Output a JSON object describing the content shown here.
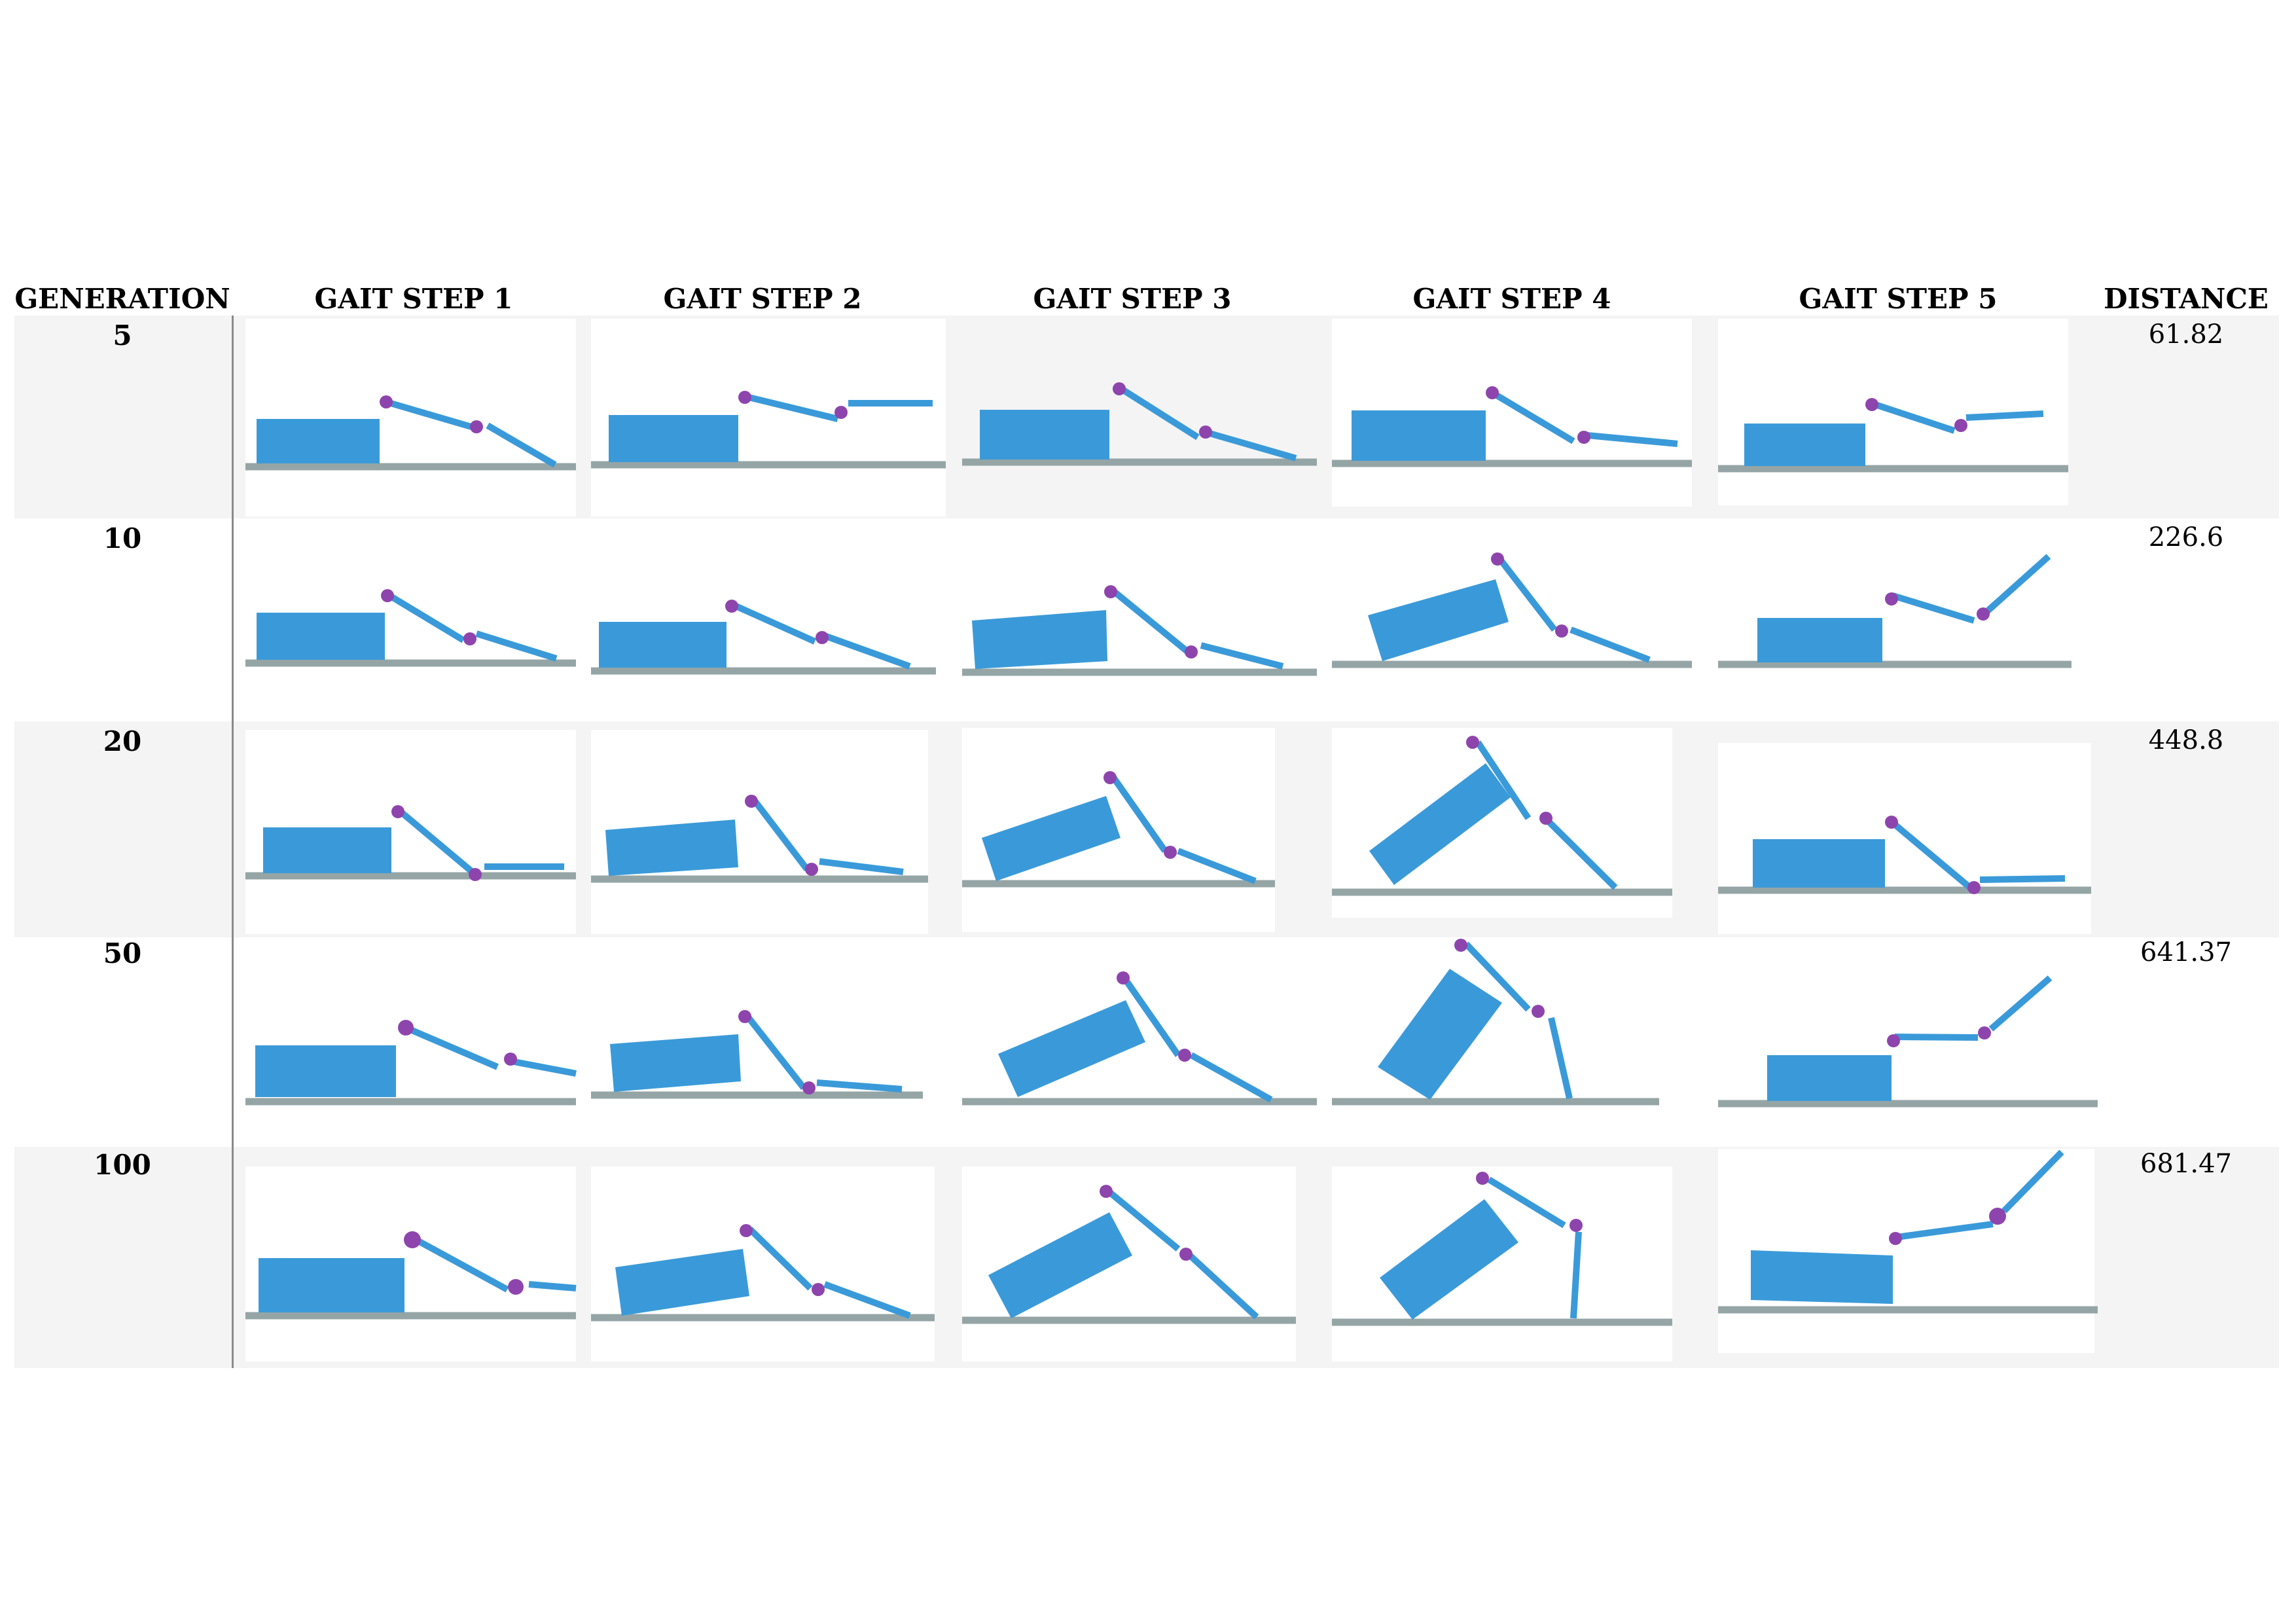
{
  "headers": {
    "generation": "GENERATION",
    "steps": [
      "GAIT STEP 1",
      "GAIT STEP 2",
      "GAIT STEP 3",
      "GAIT STEP 4",
      "GAIT STEP 5"
    ],
    "distance": "DISTANCE"
  },
  "rows": [
    {
      "generation": "5",
      "distance": "61.82"
    },
    {
      "generation": "10",
      "distance": "226.6"
    },
    {
      "generation": "20",
      "distance": "448.8"
    },
    {
      "generation": "50",
      "distance": "641.37"
    },
    {
      "generation": "100",
      "distance": "681.47"
    }
  ],
  "colors": {
    "body": "#3a9ad9",
    "leg": "#3a9ad9",
    "joint": "#8e44ad",
    "ground": "#95a5a6",
    "row_shade": "#f4f4f4"
  }
}
